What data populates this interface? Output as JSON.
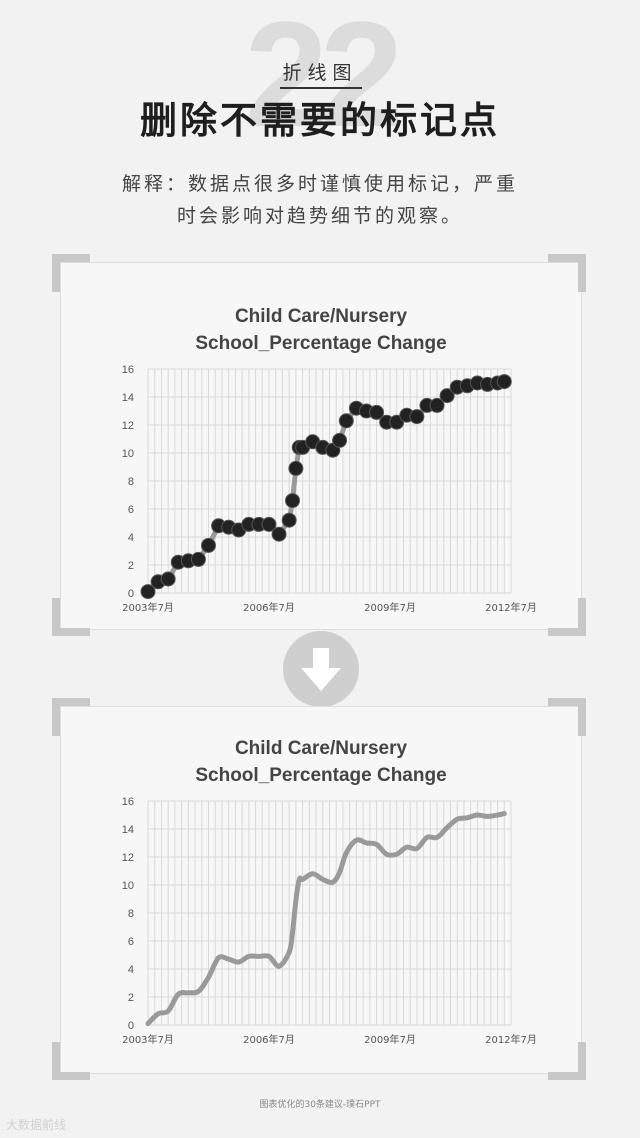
{
  "header": {
    "number": "22",
    "tag": "折线图",
    "title": "删除不需要的标记点",
    "desc_line1": "解释：数据点很多时谨慎使用标记，严重",
    "desc_line2": "时会影响对趋势细节的观察。"
  },
  "footer": {
    "credit": "图表优化的30条建议-璞石PPT",
    "watermark": "大数据前线"
  },
  "colors": {
    "marker": "#222222",
    "line": "#9a9a9a",
    "grid": "#d9d9d9",
    "arrow_bg": "#cfcfcf"
  },
  "icons": {
    "arrow": "arrow-down-icon"
  },
  "chart_data": [
    {
      "type": "line",
      "markers": true,
      "title_line1": "Child Care/Nursery",
      "title_line2": "School_Percentage Change",
      "ylim": [
        0,
        16
      ],
      "yticks": [
        "0",
        "2",
        "4",
        "6",
        "8",
        "10",
        "12",
        "14",
        "16"
      ],
      "xticks": [
        "2003年7月",
        "2006年7月",
        "2009年7月",
        "2012年7月"
      ],
      "xlim": [
        0,
        108
      ],
      "x": [
        0,
        3,
        6,
        9,
        12,
        15,
        18,
        21,
        24,
        27,
        30,
        33,
        36,
        39,
        42,
        43,
        44,
        45,
        46,
        49,
        52,
        55,
        57,
        59,
        62,
        65,
        68,
        71,
        74,
        77,
        80,
        83,
        86,
        89,
        92,
        95,
        98,
        101,
        104,
        106
      ],
      "values": [
        0.1,
        0.8,
        1.0,
        2.2,
        2.3,
        2.4,
        3.4,
        4.8,
        4.7,
        4.5,
        4.9,
        4.9,
        4.9,
        4.2,
        5.2,
        6.6,
        8.9,
        10.4,
        10.4,
        10.8,
        10.4,
        10.2,
        10.9,
        12.3,
        13.2,
        13.0,
        12.9,
        12.2,
        12.2,
        12.7,
        12.6,
        13.4,
        13.4,
        14.1,
        14.7,
        14.8,
        15.0,
        14.9,
        15.0,
        15.1
      ]
    },
    {
      "type": "line",
      "markers": false,
      "title_line1": "Child Care/Nursery",
      "title_line2": "School_Percentage Change",
      "ylim": [
        0,
        16
      ],
      "yticks": [
        "0",
        "2",
        "4",
        "6",
        "8",
        "10",
        "12",
        "14",
        "16"
      ],
      "xticks": [
        "2003年7月",
        "2006年7月",
        "2009年7月",
        "2012年7月"
      ],
      "xlim": [
        0,
        108
      ],
      "x": [
        0,
        3,
        6,
        9,
        12,
        15,
        18,
        21,
        24,
        27,
        30,
        33,
        36,
        39,
        42,
        43,
        44,
        45,
        46,
        49,
        52,
        55,
        57,
        59,
        62,
        65,
        68,
        71,
        74,
        77,
        80,
        83,
        86,
        89,
        92,
        95,
        98,
        101,
        104,
        106
      ],
      "values": [
        0.1,
        0.8,
        1.0,
        2.2,
        2.3,
        2.4,
        3.4,
        4.8,
        4.7,
        4.5,
        4.9,
        4.9,
        4.9,
        4.2,
        5.2,
        6.6,
        8.9,
        10.4,
        10.4,
        10.8,
        10.4,
        10.2,
        10.9,
        12.3,
        13.2,
        13.0,
        12.9,
        12.2,
        12.2,
        12.7,
        12.6,
        13.4,
        13.4,
        14.1,
        14.7,
        14.8,
        15.0,
        14.9,
        15.0,
        15.1
      ]
    }
  ]
}
